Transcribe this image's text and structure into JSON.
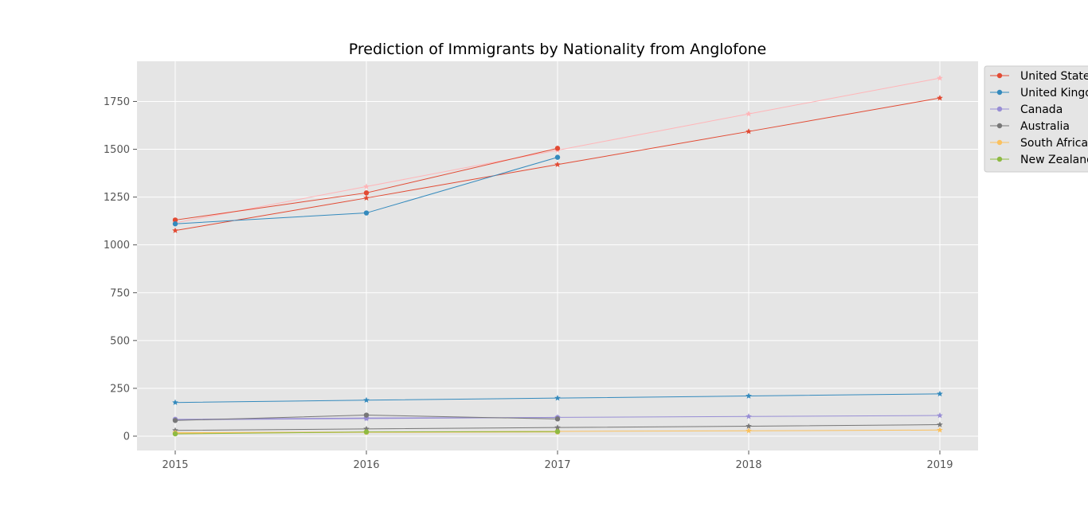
{
  "chart_data": {
    "type": "line",
    "title": "Prediction of Immigrants by Nationality from Anglofone",
    "xlabel": "",
    "ylabel": "",
    "x_ticks": [
      2015,
      2016,
      2017,
      2018,
      2019
    ],
    "y_ticks": [
      0,
      250,
      500,
      750,
      1000,
      1250,
      1500,
      1750
    ],
    "xlim": [
      2014.8,
      2019.2
    ],
    "ylim": [
      -75,
      1960
    ],
    "grid": true,
    "legend_position": "upper-right-outside",
    "series": [
      {
        "name": "United States",
        "kind": "actual",
        "marker": "circle",
        "color": "#e24a33",
        "x": [
          2015,
          2016,
          2017
        ],
        "y": [
          1130,
          1272,
          1505
        ]
      },
      {
        "name": "United Kingdom",
        "kind": "actual",
        "marker": "circle",
        "color": "#348abd",
        "x": [
          2015,
          2016,
          2017
        ],
        "y": [
          1110,
          1167,
          1458
        ]
      },
      {
        "name": "Canada",
        "kind": "actual",
        "marker": "circle",
        "color": "#988ed5",
        "x": [
          2015,
          2016,
          2017
        ],
        "y": [
          88,
          95,
          97
        ]
      },
      {
        "name": "Australia",
        "kind": "actual",
        "marker": "circle",
        "color": "#777777",
        "x": [
          2015,
          2016,
          2017
        ],
        "y": [
          82,
          110,
          90
        ]
      },
      {
        "name": "South Africa",
        "kind": "actual",
        "marker": "circle",
        "color": "#fbc15e",
        "x": [
          2015,
          2016,
          2017
        ],
        "y": [
          15,
          20,
          22
        ]
      },
      {
        "name": "New Zealand",
        "kind": "actual",
        "marker": "circle",
        "color": "#8eba42",
        "x": [
          2015,
          2016,
          2017
        ],
        "y": [
          12,
          22,
          24
        ]
      },
      {
        "kind": "prediction",
        "marker": "star",
        "color": "#e24a33",
        "x": [
          2015,
          2016,
          2017,
          2018,
          2019
        ],
        "y": [
          1075,
          1245,
          1420,
          1593,
          1768
        ]
      },
      {
        "kind": "prediction",
        "marker": "star",
        "color": "#ffb5b8",
        "x": [
          2015,
          2016,
          2017,
          2018,
          2019
        ],
        "y": [
          1115,
          1305,
          1495,
          1685,
          1872
        ]
      },
      {
        "kind": "prediction",
        "marker": "star",
        "color": "#348abd",
        "x": [
          2015,
          2016,
          2017,
          2018,
          2019
        ],
        "y": [
          176,
          188,
          199,
          210,
          221
        ]
      },
      {
        "kind": "prediction",
        "marker": "star",
        "color": "#988ed5",
        "x": [
          2015,
          2016,
          2017,
          2018,
          2019
        ],
        "y": [
          85,
          92,
          98,
          103,
          108
        ]
      },
      {
        "kind": "prediction",
        "marker": "star",
        "color": "#777777",
        "x": [
          2015,
          2016,
          2017,
          2018,
          2019
        ],
        "y": [
          30,
          38,
          45,
          52,
          60
        ]
      },
      {
        "kind": "prediction",
        "marker": "star",
        "color": "#fbc15e",
        "x": [
          2015,
          2016,
          2017,
          2018,
          2019
        ],
        "y": [
          18,
          22,
          25,
          28,
          32
        ]
      }
    ]
  }
}
